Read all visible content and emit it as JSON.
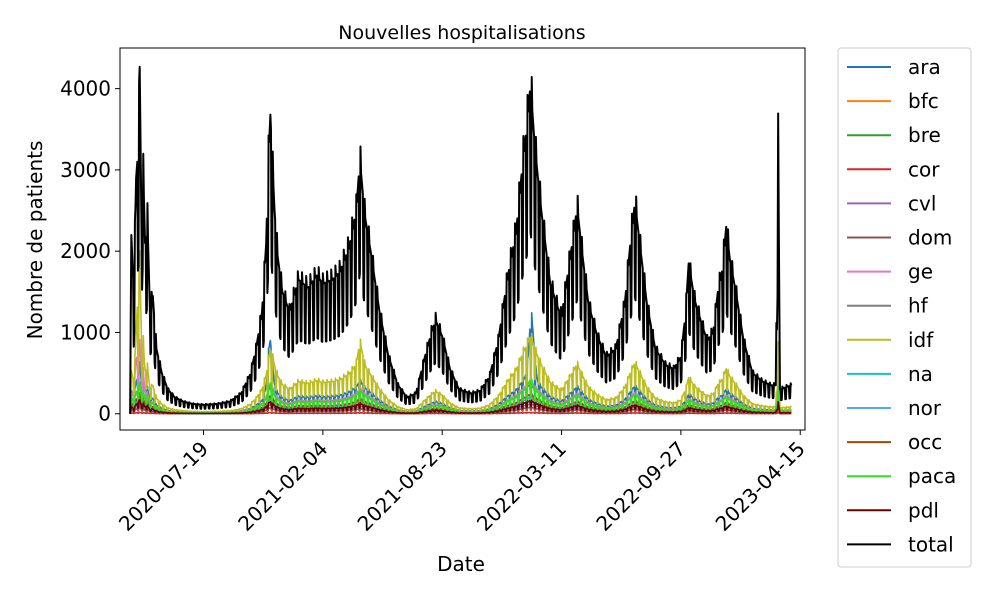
{
  "chart_data": {
    "type": "line",
    "title": "Nouvelles hospitalisations",
    "xlabel": "Date",
    "ylabel": "Nombre de patients",
    "x_start": "2020-03-18",
    "x_end": "2023-03-31",
    "xlim": [
      "2020-03-01",
      "2023-04-23"
    ],
    "ylim": [
      -200,
      4500
    ],
    "xticks": [
      "2020-07-19",
      "2021-02-04",
      "2021-08-23",
      "2022-03-11",
      "2022-09-27",
      "2023-04-15"
    ],
    "yticks": [
      0,
      1000,
      2000,
      3000,
      4000
    ],
    "ytick_labels": [
      "0",
      "1000",
      "2000",
      "3000",
      "4000"
    ],
    "grid": false,
    "legend_position": "outside-right",
    "total_points": [
      [
        "2020-03-18",
        0
      ],
      [
        "2020-03-20",
        2200
      ],
      [
        "2020-03-24",
        1500
      ],
      [
        "2020-03-28",
        2900
      ],
      [
        "2020-04-01",
        3300
      ],
      [
        "2020-04-03",
        4270
      ],
      [
        "2020-04-06",
        2300
      ],
      [
        "2020-04-08",
        3250
      ],
      [
        "2020-04-12",
        2100
      ],
      [
        "2020-04-16",
        2400
      ],
      [
        "2020-04-20",
        1300
      ],
      [
        "2020-04-25",
        1450
      ],
      [
        "2020-05-01",
        800
      ],
      [
        "2020-05-10",
        500
      ],
      [
        "2020-05-20",
        300
      ],
      [
        "2020-06-01",
        200
      ],
      [
        "2020-06-15",
        150
      ],
      [
        "2020-07-01",
        120
      ],
      [
        "2020-07-19",
        110
      ],
      [
        "2020-08-10",
        120
      ],
      [
        "2020-09-01",
        150
      ],
      [
        "2020-09-20",
        250
      ],
      [
        "2020-10-05",
        480
      ],
      [
        "2020-10-15",
        800
      ],
      [
        "2020-10-25",
        1250
      ],
      [
        "2020-11-01",
        2100
      ],
      [
        "2020-11-04",
        3000
      ],
      [
        "2020-11-08",
        3680
      ],
      [
        "2020-11-11",
        3150
      ],
      [
        "2020-11-15",
        2500
      ],
      [
        "2020-11-20",
        1950
      ],
      [
        "2020-11-28",
        1500
      ],
      [
        "2020-12-10",
        1250
      ],
      [
        "2020-12-25",
        1650
      ],
      [
        "2021-01-10",
        1550
      ],
      [
        "2021-01-25",
        1700
      ],
      [
        "2021-02-04",
        1600
      ],
      [
        "2021-02-20",
        1650
      ],
      [
        "2021-03-05",
        1750
      ],
      [
        "2021-03-20",
        2050
      ],
      [
        "2021-04-01",
        2500
      ],
      [
        "2021-04-07",
        3130
      ],
      [
        "2021-04-15",
        2450
      ],
      [
        "2021-04-25",
        2000
      ],
      [
        "2021-05-10",
        1250
      ],
      [
        "2021-05-25",
        700
      ],
      [
        "2021-06-10",
        350
      ],
      [
        "2021-06-25",
        200
      ],
      [
        "2021-07-10",
        250
      ],
      [
        "2021-07-25",
        700
      ],
      [
        "2021-08-05",
        1000
      ],
      [
        "2021-08-12",
        1150
      ],
      [
        "2021-08-23",
        950
      ],
      [
        "2021-09-05",
        550
      ],
      [
        "2021-09-20",
        300
      ],
      [
        "2021-10-10",
        250
      ],
      [
        "2021-10-25",
        280
      ],
      [
        "2021-11-10",
        450
      ],
      [
        "2021-11-25",
        900
      ],
      [
        "2021-12-10",
        1650
      ],
      [
        "2021-12-25",
        2250
      ],
      [
        "2022-01-05",
        3100
      ],
      [
        "2022-01-12",
        3550
      ],
      [
        "2022-01-18",
        4050
      ],
      [
        "2022-01-25",
        3300
      ],
      [
        "2022-02-05",
        2500
      ],
      [
        "2022-02-20",
        1600
      ],
      [
        "2022-03-05",
        1300
      ],
      [
        "2022-03-11",
        1200
      ],
      [
        "2022-03-20",
        1650
      ],
      [
        "2022-04-01",
        2250
      ],
      [
        "2022-04-06",
        2550
      ],
      [
        "2022-04-15",
        1950
      ],
      [
        "2022-04-25",
        1350
      ],
      [
        "2022-05-10",
        950
      ],
      [
        "2022-05-25",
        700
      ],
      [
        "2022-06-10",
        800
      ],
      [
        "2022-06-25",
        1350
      ],
      [
        "2022-07-05",
        2150
      ],
      [
        "2022-07-12",
        2600
      ],
      [
        "2022-07-20",
        2100
      ],
      [
        "2022-08-01",
        1350
      ],
      [
        "2022-08-15",
        800
      ],
      [
        "2022-09-01",
        600
      ],
      [
        "2022-09-15",
        550
      ],
      [
        "2022-09-27",
        700
      ],
      [
        "2022-10-05",
        1250
      ],
      [
        "2022-10-10",
        1850
      ],
      [
        "2022-10-20",
        1400
      ],
      [
        "2022-11-01",
        1100
      ],
      [
        "2022-11-10",
        900
      ],
      [
        "2022-11-20",
        1000
      ],
      [
        "2022-11-28",
        1500
      ],
      [
        "2022-12-05",
        1750
      ],
      [
        "2022-12-12",
        2300
      ],
      [
        "2022-12-18",
        1900
      ],
      [
        "2022-12-28",
        1500
      ],
      [
        "2023-01-10",
        900
      ],
      [
        "2023-01-25",
        500
      ],
      [
        "2023-02-10",
        400
      ],
      [
        "2023-02-25",
        350
      ],
      [
        "2023-03-05",
        350
      ],
      [
        "2023-03-09",
        3420
      ],
      [
        "2023-03-12",
        300
      ],
      [
        "2023-03-31",
        350
      ]
    ],
    "series": [
      {
        "name": "ara",
        "color": "#1f77b4",
        "scale": 0.13,
        "values": [
          [
            "2020-04-05",
            450
          ],
          [
            "2020-11-07",
            870
          ],
          [
            "2022-01-20",
            1150
          ]
        ]
      },
      {
        "name": "bfc",
        "color": "#ff7f0e",
        "scale": 0.05,
        "values": []
      },
      {
        "name": "bre",
        "color": "#2ca02c",
        "scale": 0.04,
        "values": []
      },
      {
        "name": "cor",
        "color": "#d62728",
        "scale": 0.004,
        "values": []
      },
      {
        "name": "cvl",
        "color": "#9467bd",
        "scale": 0.03,
        "values": []
      },
      {
        "name": "dom",
        "color": "#8c564b",
        "scale": 0.02,
        "values": []
      },
      {
        "name": "ge",
        "color": "#e377c2",
        "scale": 0.1,
        "values": [
          [
            "2020-03-29",
            700
          ],
          [
            "2020-04-05",
            650
          ]
        ]
      },
      {
        "name": "hf",
        "color": "#7f7f7f",
        "scale": 0.09,
        "values": []
      },
      {
        "name": "idf",
        "color": "#bcbd22",
        "scale": 0.24,
        "values": [
          [
            "2020-04-02",
            1800
          ],
          [
            "2020-11-06",
            700
          ],
          [
            "2021-04-08",
            850
          ],
          [
            "2022-01-15",
            900
          ]
        ]
      },
      {
        "name": "na",
        "color": "#17becf",
        "scale": 0.06,
        "values": []
      },
      {
        "name": "nor",
        "color": "#4da6ff",
        "scale": 0.05,
        "values": []
      },
      {
        "name": "occ",
        "color": "#a0460a",
        "scale": 0.06,
        "values": []
      },
      {
        "name": "paca",
        "color": "#33dd22",
        "scale": 0.09,
        "values": [
          [
            "2020-11-08",
            380
          ],
          [
            "2022-01-18",
            420
          ]
        ]
      },
      {
        "name": "pdl",
        "color": "#6b0000",
        "scale": 0.04,
        "values": []
      },
      {
        "name": "total",
        "color": "#000000",
        "values": "total_points"
      }
    ]
  }
}
